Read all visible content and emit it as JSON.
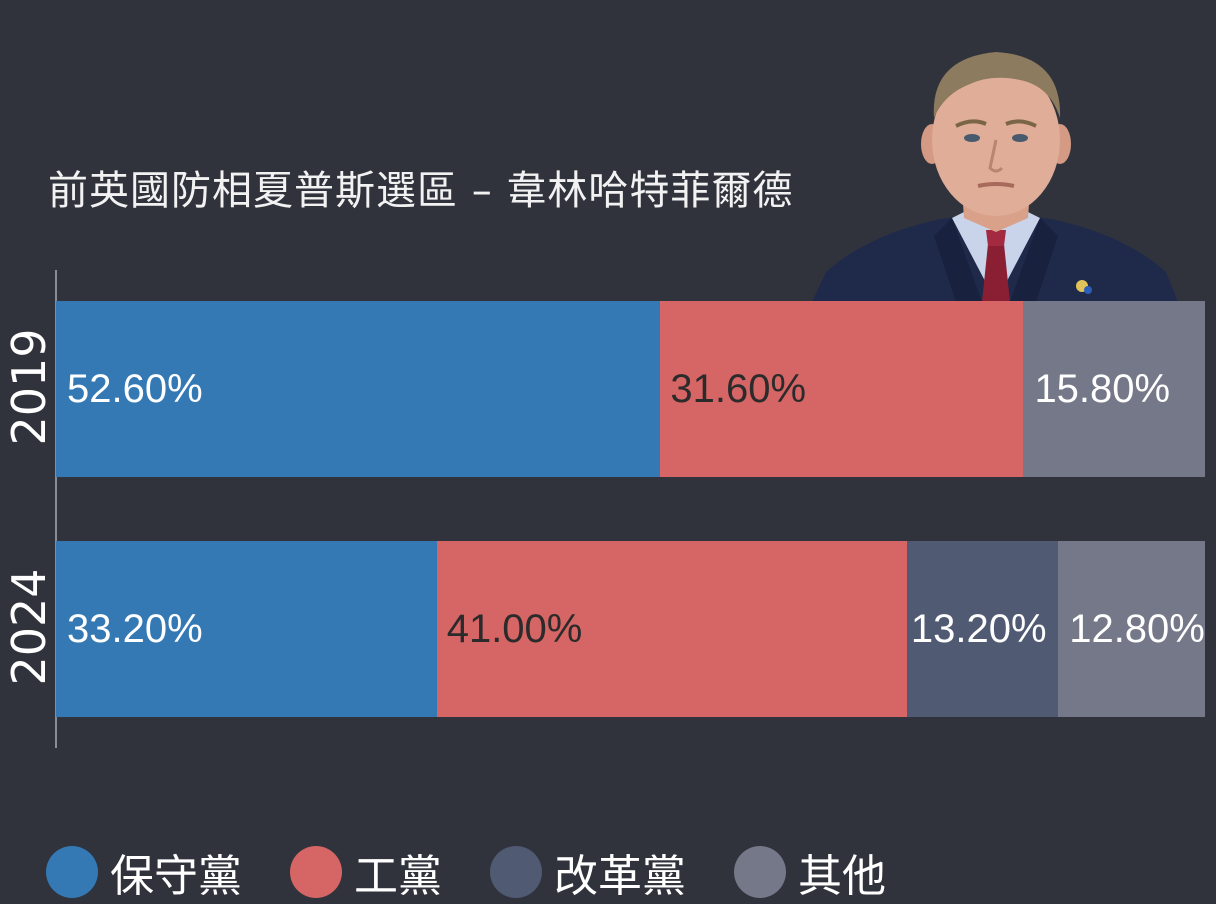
{
  "title": "前英國防相夏普斯選區 – 韋林哈特菲爾德",
  "colors": {
    "background": "#30333c",
    "conservative": "#3479b4",
    "labour": "#d66565",
    "reform": "#505a72",
    "other": "#757888"
  },
  "chart_data": {
    "type": "bar",
    "stacked": true,
    "orientation": "horizontal",
    "title": "前英國防相夏普斯選區 – 韋林哈特菲爾德",
    "categories": [
      "2019",
      "2024"
    ],
    "value_format": "percent",
    "series": [
      {
        "name": "保守黨",
        "color": "#3479b4",
        "values": [
          52.6,
          33.2
        ],
        "labels": [
          "52.60%",
          "33.20%"
        ]
      },
      {
        "name": "工黨",
        "color": "#d66565",
        "values": [
          31.6,
          41.0
        ],
        "labels": [
          "31.60%",
          "41.00%"
        ]
      },
      {
        "name": "改革黨",
        "color": "#505a72",
        "values": [
          0,
          13.2
        ],
        "labels": [
          "",
          "13.20%"
        ]
      },
      {
        "name": "其他",
        "color": "#757888",
        "values": [
          15.8,
          12.8
        ],
        "labels": [
          "15.80%",
          "12.80%"
        ]
      }
    ],
    "legend_position": "bottom",
    "grid": false
  },
  "legend": [
    {
      "label": "保守黨",
      "color": "#3479b4"
    },
    {
      "label": "工黨",
      "color": "#d66565"
    },
    {
      "label": "改革黨",
      "color": "#505a72"
    },
    {
      "label": "其他",
      "color": "#757888"
    }
  ]
}
